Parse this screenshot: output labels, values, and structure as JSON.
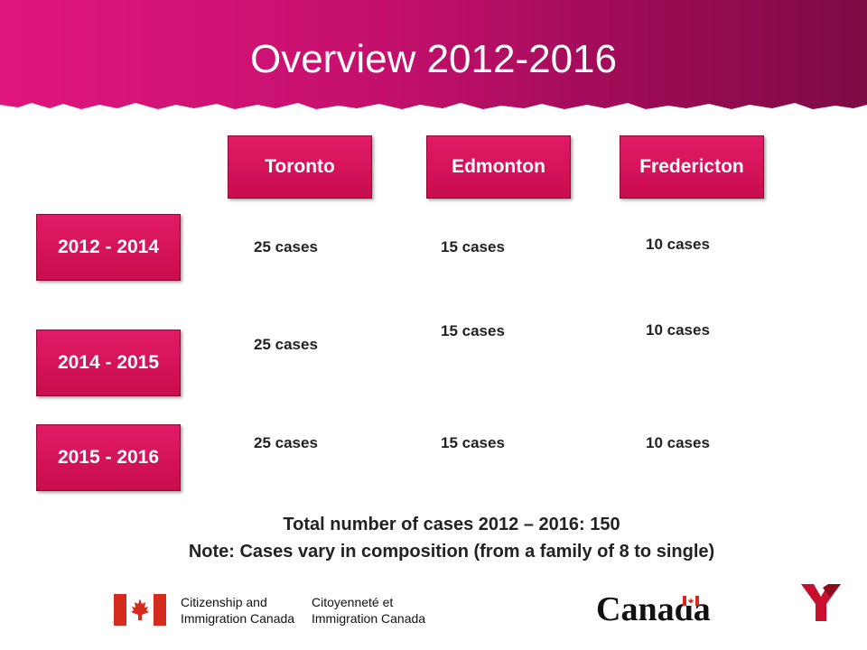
{
  "title": "Overview 2012-2016",
  "cities": [
    "Toronto",
    "Edmonton",
    "Fredericton"
  ],
  "periods": [
    "2012 - 2014",
    "2014 - 2015",
    "2015 - 2016"
  ],
  "cases": [
    [
      "25 cases",
      "15 cases",
      "10 cases"
    ],
    [
      "25 cases",
      "15 cases",
      "10 cases"
    ],
    [
      "25 cases",
      "15 cases",
      "10 cases"
    ]
  ],
  "summary": {
    "total": "Total number of cases 2012 – 2016: 150",
    "note": "Note: Cases vary in composition (from a family of 8 to single)"
  },
  "footer": {
    "cic_en_line1": "Citizenship and",
    "cic_en_line2": "Immigration Canada",
    "cic_fr_line1": "Citoyenneté et",
    "cic_fr_line2": "Immigration Canada",
    "canada_wordmark": "Canada",
    "ymca_logo": "Y"
  },
  "colors": {
    "banner_left": "#e0157e",
    "banner_right": "#7d0a45",
    "box": "#d5125a",
    "flag_red": "#d52b1e",
    "ymca_red": "#c8102e"
  }
}
